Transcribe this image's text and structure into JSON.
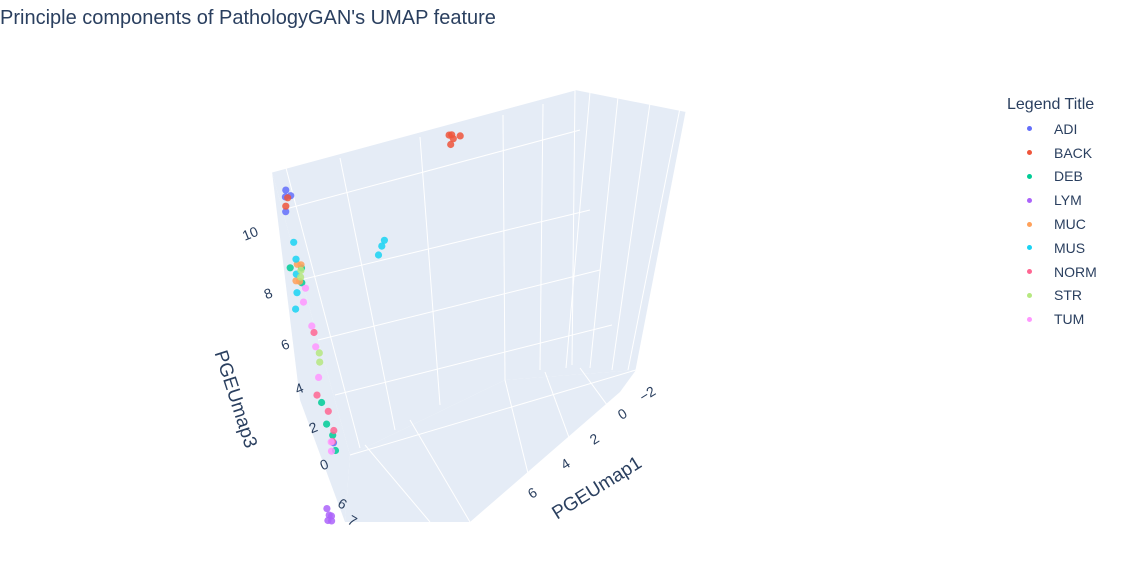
{
  "title": "Principle components of PathologyGAN's UMAP feature",
  "legend": {
    "title": "Legend Title",
    "items": [
      {
        "label": "ADI",
        "color": "#636efa"
      },
      {
        "label": "BACK",
        "color": "#ef553b"
      },
      {
        "label": "DEB",
        "color": "#00cc96"
      },
      {
        "label": "LYM",
        "color": "#ab63fa"
      },
      {
        "label": "MUC",
        "color": "#ffa15a"
      },
      {
        "label": "MUS",
        "color": "#19d3f3"
      },
      {
        "label": "NORM",
        "color": "#ff6692"
      },
      {
        "label": "STR",
        "color": "#b6e880"
      },
      {
        "label": "TUM",
        "color": "#ff97ff"
      }
    ]
  },
  "chart_data": {
    "type": "scatter",
    "dimensions": 3,
    "title": "Principle components of PathologyGAN's UMAP feature",
    "xlabel": "PGEUmap1",
    "ylabel": "",
    "zlabel": "PGEUmap3",
    "x_ticks": [
      "−2",
      "0",
      "2",
      "4",
      "6"
    ],
    "y_ticks": [
      "6",
      "7"
    ],
    "z_ticks": [
      "0",
      "2",
      "4",
      "6",
      "8",
      "10"
    ],
    "grid": true,
    "legend_title": "Legend Title",
    "legend_position": "right",
    "series": [
      {
        "name": "ADI",
        "color": "#636efa",
        "points": [
          [
            5.8,
            5.8,
            11.2
          ],
          [
            5.9,
            5.8,
            11.0
          ],
          [
            5.7,
            5.7,
            10.8
          ],
          [
            6.0,
            5.9,
            10.6
          ],
          [
            6.8,
            5.6,
            1.7
          ]
        ]
      },
      {
        "name": "BACK",
        "color": "#ef553b",
        "points": [
          [
            5.8,
            5.8,
            10.9
          ],
          [
            6.0,
            5.8,
            10.7
          ],
          [
            -1.8,
            4.2,
            6.6
          ],
          [
            -1.9,
            4.3,
            6.5
          ],
          [
            -1.6,
            4.1,
            6.6
          ],
          [
            -2.2,
            4.2,
            6.3
          ],
          [
            -1.7,
            4.3,
            6.4
          ]
        ]
      },
      {
        "name": "DEB",
        "color": "#00cc96",
        "points": [
          [
            6.2,
            6.3,
            9.0
          ],
          [
            5.9,
            6.2,
            8.1
          ],
          [
            6.3,
            6.4,
            3.9
          ],
          [
            6.4,
            6.3,
            3.0
          ],
          [
            6.1,
            6.5,
            2.6
          ],
          [
            6.3,
            6.3,
            1.9
          ],
          [
            5.8,
            6.1,
            8.5
          ]
        ]
      },
      {
        "name": "LYM",
        "color": "#ab63fa",
        "points": [
          [
            6.8,
            7.2,
            1.0
          ],
          [
            6.7,
            7.3,
            0.8
          ],
          [
            6.9,
            7.2,
            0.6
          ],
          [
            6.8,
            7.1,
            0.4
          ],
          [
            6.6,
            7.3,
            0.7
          ]
        ]
      },
      {
        "name": "MUC",
        "color": "#ffa15a",
        "points": [
          [
            6.1,
            5.9,
            8.6
          ],
          [
            6.0,
            5.8,
            8.4
          ],
          [
            6.3,
            6.0,
            8.2
          ],
          [
            6.2,
            5.9,
            8.0
          ]
        ]
      },
      {
        "name": "MUS",
        "color": "#19d3f3",
        "points": [
          [
            6.0,
            5.9,
            9.4
          ],
          [
            6.1,
            5.9,
            8.8
          ],
          [
            6.2,
            6.0,
            8.4
          ],
          [
            6.4,
            6.0,
            7.8
          ],
          [
            6.6,
            6.1,
            7.4
          ],
          [
            2.2,
            5.3,
            6.1
          ],
          [
            2.0,
            5.3,
            6.2
          ],
          [
            2.4,
            5.4,
            6.0
          ]
        ]
      },
      {
        "name": "NORM",
        "color": "#ff6692",
        "points": [
          [
            6.0,
            6.1,
            6.1
          ],
          [
            6.3,
            6.1,
            3.2
          ],
          [
            6.2,
            6.2,
            2.5
          ],
          [
            6.5,
            6.3,
            4.2
          ],
          [
            6.4,
            6.2,
            2.2
          ]
        ]
      },
      {
        "name": "STR",
        "color": "#b6e880",
        "points": [
          [
            6.0,
            5.9,
            8.3
          ],
          [
            6.1,
            5.9,
            8.1
          ],
          [
            6.0,
            6.1,
            5.3
          ],
          [
            6.1,
            6.1,
            5.0
          ]
        ]
      },
      {
        "name": "TUM",
        "color": "#ff97ff",
        "points": [
          [
            6.0,
            5.9,
            7.6
          ],
          [
            6.2,
            6.0,
            7.3
          ],
          [
            6.1,
            6.0,
            6.3
          ],
          [
            6.1,
            6.1,
            5.6
          ],
          [
            6.4,
            6.3,
            2.3
          ],
          [
            6.5,
            6.3,
            2.0
          ],
          [
            6.2,
            6.3,
            4.7
          ]
        ]
      }
    ]
  }
}
